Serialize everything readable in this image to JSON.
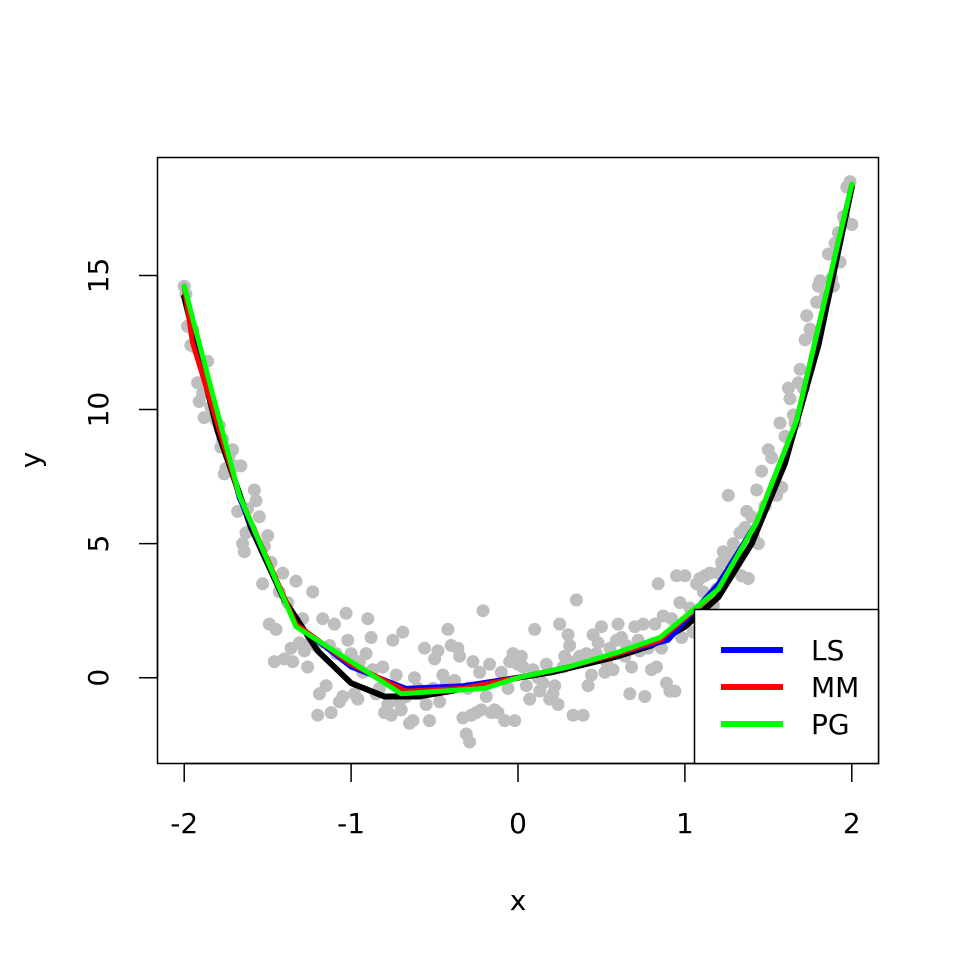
{
  "chart_data": {
    "type": "scatter",
    "xlabel": "x",
    "ylabel": "y",
    "xlim": [
      -2.16,
      2.16
    ],
    "ylim": [
      -3.2,
      19.4
    ],
    "x_ticks": [
      {
        "value": -2,
        "label": "-2"
      },
      {
        "value": -1,
        "label": "-1"
      },
      {
        "value": 0,
        "label": "0"
      },
      {
        "value": 1,
        "label": "1"
      },
      {
        "value": 2,
        "label": "2"
      }
    ],
    "y_ticks": [
      {
        "value": 0,
        "label": "0"
      },
      {
        "value": 5,
        "label": "5"
      },
      {
        "value": 10,
        "label": "10"
      },
      {
        "value": 15,
        "label": "15"
      }
    ],
    "grid": false,
    "legend_position": "bottom-right",
    "colors": {
      "points": "#bebebe",
      "true_curve": "#000000",
      "LS": "#0000ff",
      "MM": "#ff0000",
      "PG": "#00ff00"
    },
    "legend": [
      {
        "label": "LS",
        "color": "#0000ff"
      },
      {
        "label": "MM",
        "color": "#ff0000"
      },
      {
        "label": "PG",
        "color": "#00ff00"
      }
    ],
    "points": [
      [
        -2.0,
        14.6
      ],
      [
        -1.99,
        14.3
      ],
      [
        -1.98,
        13.1
      ],
      [
        -1.96,
        12.4
      ],
      [
        -1.95,
        13.0
      ],
      [
        -1.93,
        12.3
      ],
      [
        -1.92,
        11.0
      ],
      [
        -1.91,
        10.3
      ],
      [
        -1.89,
        10.6
      ],
      [
        -1.88,
        9.7
      ],
      [
        -1.86,
        11.8
      ],
      [
        -1.84,
        10.1
      ],
      [
        -1.83,
        9.9
      ],
      [
        -1.81,
        9.6
      ],
      [
        -1.79,
        9.4
      ],
      [
        -1.78,
        8.6
      ],
      [
        -1.77,
        8.9
      ],
      [
        -1.76,
        7.6
      ],
      [
        -1.75,
        7.8
      ],
      [
        -1.73,
        8.3
      ],
      [
        -1.71,
        8.5
      ],
      [
        -1.7,
        7.9
      ],
      [
        -1.68,
        6.2
      ],
      [
        -1.66,
        7.9
      ],
      [
        -1.65,
        5.0
      ],
      [
        -1.64,
        4.7
      ],
      [
        -1.63,
        5.4
      ],
      [
        -1.62,
        6.3
      ],
      [
        -1.6,
        5.5
      ],
      [
        -1.58,
        7.0
      ],
      [
        -1.57,
        6.6
      ],
      [
        -1.55,
        6.0
      ],
      [
        -1.53,
        3.5
      ],
      [
        -1.52,
        4.9
      ],
      [
        -1.5,
        5.3
      ],
      [
        -1.49,
        2.0
      ],
      [
        -1.48,
        4.3
      ],
      [
        -1.46,
        0.6
      ],
      [
        -1.45,
        1.8
      ],
      [
        -1.43,
        3.2
      ],
      [
        -1.41,
        3.9
      ],
      [
        -1.4,
        0.7
      ],
      [
        -1.38,
        2.8
      ],
      [
        -1.36,
        1.1
      ],
      [
        -1.35,
        0.6
      ],
      [
        -1.33,
        3.6
      ],
      [
        -1.31,
        1.3
      ],
      [
        -1.29,
        2.2
      ],
      [
        -1.28,
        1.0
      ],
      [
        -1.26,
        0.4
      ],
      [
        -1.24,
        1.4
      ],
      [
        -1.23,
        3.2
      ],
      [
        -1.21,
        1.2
      ],
      [
        -1.2,
        -1.4
      ],
      [
        -1.19,
        -0.6
      ],
      [
        -1.17,
        2.2
      ],
      [
        -1.15,
        -0.3
      ],
      [
        -1.13,
        1.2
      ],
      [
        -1.12,
        -1.3
      ],
      [
        -1.1,
        2.0
      ],
      [
        -1.09,
        0.9
      ],
      [
        -1.07,
        -0.9
      ],
      [
        -1.05,
        -0.7
      ],
      [
        -1.03,
        2.4
      ],
      [
        -1.02,
        1.4
      ],
      [
        -1.0,
        0.9
      ],
      [
        -0.98,
        -0.6
      ],
      [
        -0.96,
        -0.8
      ],
      [
        -0.95,
        0.6
      ],
      [
        -0.93,
        0.2
      ],
      [
        -0.91,
        0.9
      ],
      [
        -0.9,
        2.2
      ],
      [
        -0.88,
        1.5
      ],
      [
        -0.87,
        0.3
      ],
      [
        -0.85,
        -0.6
      ],
      [
        -0.83,
        -0.4
      ],
      [
        -0.81,
        0.4
      ],
      [
        -0.8,
        -1.3
      ],
      [
        -0.78,
        -1.0
      ],
      [
        -0.76,
        -1.4
      ],
      [
        -0.75,
        1.4
      ],
      [
        -0.73,
        0.1
      ],
      [
        -0.71,
        -0.9
      ],
      [
        -0.7,
        -1.2
      ],
      [
        -0.69,
        1.7
      ],
      [
        -0.67,
        -0.7
      ],
      [
        -0.65,
        -1.7
      ],
      [
        -0.63,
        -1.6
      ],
      [
        -0.62,
        0.0
      ],
      [
        -0.6,
        -0.4
      ],
      [
        -0.58,
        -0.6
      ],
      [
        -0.56,
        1.1
      ],
      [
        -0.55,
        -1.0
      ],
      [
        -0.53,
        -1.6
      ],
      [
        -0.51,
        -0.4
      ],
      [
        -0.5,
        0.7
      ],
      [
        -0.48,
        1.0
      ],
      [
        -0.47,
        -0.9
      ],
      [
        -0.45,
        0.1
      ],
      [
        -0.43,
        -0.2
      ],
      [
        -0.42,
        1.8
      ],
      [
        -0.4,
        1.2
      ],
      [
        -0.38,
        -0.1
      ],
      [
        -0.36,
        1.1
      ],
      [
        -0.35,
        0.8
      ],
      [
        -0.33,
        -1.5
      ],
      [
        -0.31,
        -2.1
      ],
      [
        -0.3,
        -0.4
      ],
      [
        -0.29,
        -2.4
      ],
      [
        -0.28,
        -1.4
      ],
      [
        -0.27,
        0.6
      ],
      [
        -0.25,
        -1.3
      ],
      [
        -0.23,
        0.2
      ],
      [
        -0.22,
        -1.2
      ],
      [
        -0.21,
        2.5
      ],
      [
        -0.19,
        -0.7
      ],
      [
        -0.17,
        0.5
      ],
      [
        -0.16,
        -1.3
      ],
      [
        -0.14,
        -1.2
      ],
      [
        -0.12,
        -1.3
      ],
      [
        -0.1,
        0.2
      ],
      [
        -0.08,
        -1.6
      ],
      [
        -0.06,
        -0.4
      ],
      [
        -0.05,
        0.6
      ],
      [
        -0.03,
        0.9
      ],
      [
        -0.02,
        -1.6
      ],
      [
        0.0,
        0.5
      ],
      [
        0.02,
        0.8
      ],
      [
        0.03,
        0.4
      ],
      [
        0.05,
        -0.3
      ],
      [
        0.07,
        -0.8
      ],
      [
        0.09,
        0.3
      ],
      [
        0.1,
        1.8
      ],
      [
        0.12,
        0.0
      ],
      [
        0.13,
        -0.5
      ],
      [
        0.15,
        -0.2
      ],
      [
        0.17,
        0.5
      ],
      [
        0.19,
        -0.8
      ],
      [
        0.21,
        -0.6
      ],
      [
        0.22,
        -0.3
      ],
      [
        0.24,
        -1.0
      ],
      [
        0.25,
        2.0
      ],
      [
        0.27,
        0.4
      ],
      [
        0.28,
        0.8
      ],
      [
        0.3,
        1.6
      ],
      [
        0.31,
        1.2
      ],
      [
        0.33,
        -1.4
      ],
      [
        0.34,
        0.6
      ],
      [
        0.35,
        2.9
      ],
      [
        0.37,
        0.8
      ],
      [
        0.39,
        -1.4
      ],
      [
        0.41,
        0.9
      ],
      [
        0.42,
        -0.3
      ],
      [
        0.44,
        0.1
      ],
      [
        0.45,
        1.6
      ],
      [
        0.47,
        0.9
      ],
      [
        0.48,
        1.3
      ],
      [
        0.5,
        1.9
      ],
      [
        0.52,
        0.2
      ],
      [
        0.53,
        0.6
      ],
      [
        0.55,
        1.1
      ],
      [
        0.57,
        0.3
      ],
      [
        0.59,
        1.4
      ],
      [
        0.6,
        2.0
      ],
      [
        0.62,
        1.5
      ],
      [
        0.64,
        0.8
      ],
      [
        0.65,
        1.2
      ],
      [
        0.67,
        -0.6
      ],
      [
        0.68,
        0.4
      ],
      [
        0.7,
        1.9
      ],
      [
        0.72,
        1.4
      ],
      [
        0.73,
        1.0
      ],
      [
        0.75,
        2.0
      ],
      [
        0.76,
        -0.7
      ],
      [
        0.78,
        1.1
      ],
      [
        0.8,
        0.3
      ],
      [
        0.82,
        2.0
      ],
      [
        0.83,
        0.4
      ],
      [
        0.84,
        3.5
      ],
      [
        0.86,
        1.1
      ],
      [
        0.87,
        2.3
      ],
      [
        0.89,
        -0.2
      ],
      [
        0.91,
        -0.5
      ],
      [
        0.92,
        2.2
      ],
      [
        0.94,
        -0.5
      ],
      [
        0.95,
        3.8
      ],
      [
        0.97,
        2.8
      ],
      [
        0.98,
        1.5
      ],
      [
        1.0,
        3.8
      ],
      [
        1.01,
        2.1
      ],
      [
        1.03,
        2.6
      ],
      [
        1.05,
        1.7
      ],
      [
        1.07,
        3.5
      ],
      [
        1.08,
        2.4
      ],
      [
        1.09,
        3.7
      ],
      [
        1.11,
        3.2
      ],
      [
        1.12,
        3.8
      ],
      [
        1.14,
        2.6
      ],
      [
        1.15,
        3.9
      ],
      [
        1.17,
        2.7
      ],
      [
        1.19,
        3.3
      ],
      [
        1.2,
        3.9
      ],
      [
        1.22,
        4.3
      ],
      [
        1.23,
        4.7
      ],
      [
        1.25,
        4.6
      ],
      [
        1.26,
        6.8
      ],
      [
        1.28,
        4.3
      ],
      [
        1.29,
        5.0
      ],
      [
        1.31,
        4.6
      ],
      [
        1.33,
        5.4
      ],
      [
        1.34,
        3.8
      ],
      [
        1.36,
        5.6
      ],
      [
        1.37,
        6.2
      ],
      [
        1.38,
        3.7
      ],
      [
        1.4,
        6.0
      ],
      [
        1.41,
        5.3
      ],
      [
        1.43,
        7.0
      ],
      [
        1.44,
        5.0
      ],
      [
        1.46,
        7.7
      ],
      [
        1.48,
        6.4
      ],
      [
        1.5,
        8.5
      ],
      [
        1.52,
        8.2
      ],
      [
        1.53,
        7.0
      ],
      [
        1.55,
        6.8
      ],
      [
        1.57,
        9.5
      ],
      [
        1.58,
        7.1
      ],
      [
        1.6,
        9.0
      ],
      [
        1.62,
        10.8
      ],
      [
        1.63,
        10.4
      ],
      [
        1.65,
        9.8
      ],
      [
        1.66,
        9.5
      ],
      [
        1.68,
        11.0
      ],
      [
        1.69,
        11.5
      ],
      [
        1.71,
        10.8
      ],
      [
        1.72,
        12.6
      ],
      [
        1.73,
        13.5
      ],
      [
        1.75,
        13.0
      ],
      [
        1.77,
        12.8
      ],
      [
        1.79,
        14.0
      ],
      [
        1.8,
        14.6
      ],
      [
        1.81,
        14.8
      ],
      [
        1.83,
        14.0
      ],
      [
        1.84,
        14.2
      ],
      [
        1.86,
        15.8
      ],
      [
        1.88,
        14.9
      ],
      [
        1.89,
        14.6
      ],
      [
        1.9,
        16.2
      ],
      [
        1.92,
        16.6
      ],
      [
        1.93,
        15.5
      ],
      [
        1.95,
        17.2
      ],
      [
        1.96,
        17.0
      ],
      [
        1.97,
        18.3
      ],
      [
        1.99,
        18.5
      ],
      [
        2.0,
        16.9
      ]
    ],
    "series": [
      {
        "points": [
          [
            -2.0,
            14.2
          ],
          [
            -1.8,
            9.2
          ],
          [
            -1.6,
            5.6
          ],
          [
            -1.4,
            2.9
          ],
          [
            -1.2,
            1.0
          ],
          [
            -1.0,
            -0.2
          ],
          [
            -0.8,
            -0.7
          ],
          [
            -0.6,
            -0.7
          ],
          [
            -0.4,
            -0.5
          ],
          [
            -0.2,
            -0.2
          ],
          [
            0.0,
            0.0
          ],
          [
            0.2,
            0.2
          ],
          [
            0.4,
            0.5
          ],
          [
            0.6,
            0.8
          ],
          [
            0.8,
            1.2
          ],
          [
            1.0,
            1.9
          ],
          [
            1.2,
            3.0
          ],
          [
            1.4,
            5.0
          ],
          [
            1.6,
            8.0
          ],
          [
            1.8,
            12.4
          ],
          [
            2.0,
            18.3
          ]
        ]
      },
      {
        "name": "LS",
        "points": [
          [
            -2.0,
            14.6
          ],
          [
            -1.67,
            6.7
          ],
          [
            -1.33,
            2.0
          ],
          [
            -1.0,
            0.4
          ],
          [
            -0.67,
            -0.4
          ],
          [
            -0.33,
            -0.3
          ],
          [
            0.0,
            0.0
          ],
          [
            0.3,
            0.4
          ],
          [
            0.6,
            0.9
          ],
          [
            0.9,
            1.4
          ],
          [
            1.2,
            3.5
          ],
          [
            1.43,
            5.8
          ],
          [
            1.67,
            9.6
          ],
          [
            2.0,
            18.4
          ]
        ]
      },
      {
        "name": "MM",
        "points": [
          [
            -2.0,
            14.6
          ],
          [
            -1.95,
            12.5
          ],
          [
            -1.67,
            6.8
          ],
          [
            -1.33,
            2.0
          ],
          [
            -1.0,
            0.5
          ],
          [
            -0.67,
            -0.5
          ],
          [
            -0.33,
            -0.4
          ],
          [
            0.0,
            0.0
          ],
          [
            0.3,
            0.4
          ],
          [
            0.6,
            0.9
          ],
          [
            0.85,
            1.4
          ],
          [
            1.2,
            3.3
          ],
          [
            1.43,
            5.8
          ],
          [
            1.67,
            9.6
          ],
          [
            2.0,
            18.4
          ]
        ]
      },
      {
        "name": "PG",
        "points": [
          [
            -2.0,
            14.6
          ],
          [
            -1.67,
            6.8
          ],
          [
            -1.33,
            1.9
          ],
          [
            -1.0,
            0.6
          ],
          [
            -0.7,
            -0.6
          ],
          [
            -0.2,
            -0.4
          ],
          [
            0.0,
            0.0
          ],
          [
            0.3,
            0.4
          ],
          [
            0.6,
            0.95
          ],
          [
            0.85,
            1.5
          ],
          [
            1.2,
            3.3
          ],
          [
            1.43,
            5.8
          ],
          [
            1.67,
            9.6
          ],
          [
            2.0,
            18.4
          ]
        ]
      }
    ]
  }
}
